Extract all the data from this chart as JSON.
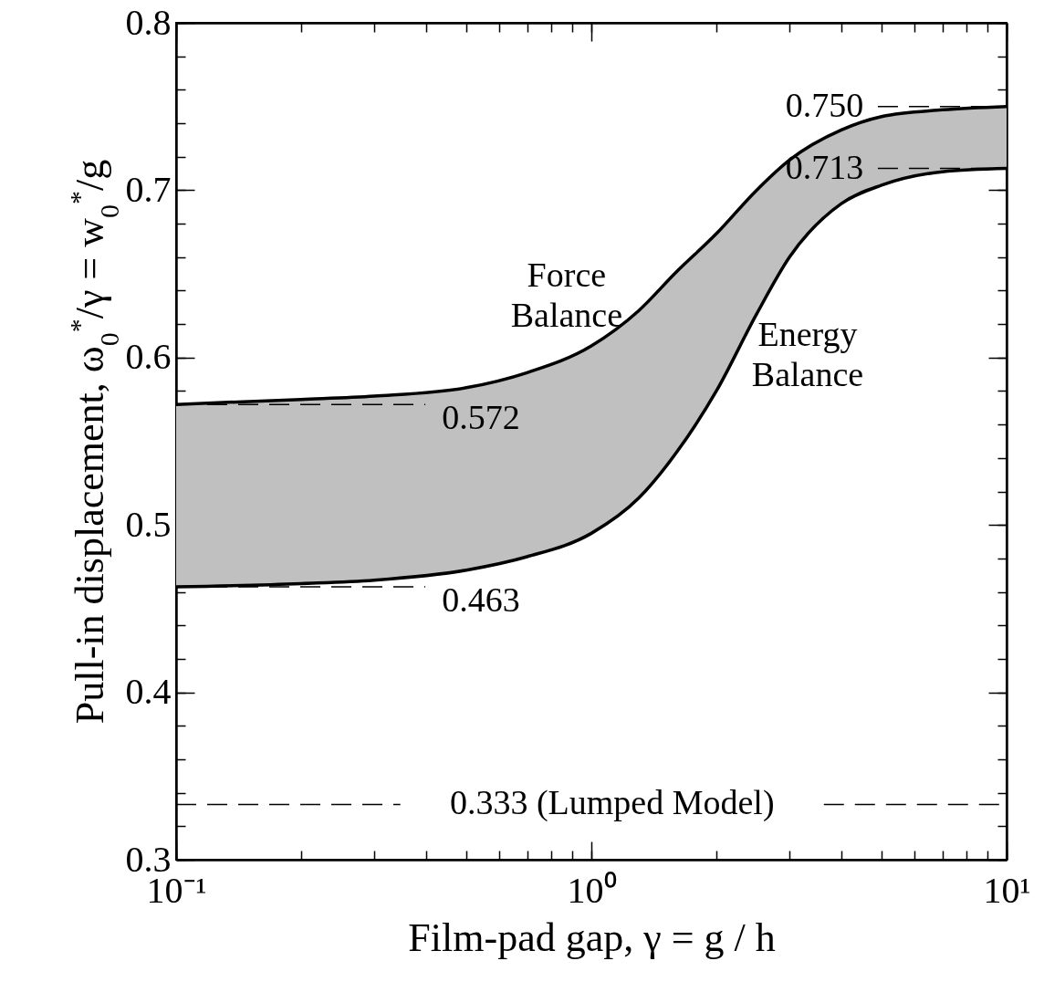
{
  "chart_data": {
    "type": "line",
    "xlabel": "Film-pad gap, γ = g / h",
    "ylabel": "Pull-in displacement, ω$_{0}$$^{*}$/γ = w$_{0}$$^{*}$/g",
    "log": "x",
    "marker": "none",
    "line_style": "solid",
    "x": [
      0.1,
      0.2,
      0.3,
      0.5,
      0.7,
      1,
      1.3,
      1.6,
      2,
      2.5,
      3,
      4,
      5,
      7,
      10
    ],
    "series": [
      {
        "name": "Force Balance",
        "color": "#000000",
        "values": [
          0.572,
          0.575,
          0.577,
          0.582,
          0.591,
          0.607,
          0.628,
          0.651,
          0.674,
          0.7,
          0.718,
          0.736,
          0.744,
          0.748,
          0.75
        ]
      },
      {
        "name": "Energy Balance",
        "color": "#000000",
        "values": [
          0.463,
          0.465,
          0.467,
          0.473,
          0.481,
          0.495,
          0.516,
          0.543,
          0.58,
          0.626,
          0.66,
          0.692,
          0.703,
          0.711,
          0.713
        ],
        "lower": [
          0.463,
          0.465,
          0.467,
          0.473,
          0.481,
          0.495,
          0.516,
          0.543,
          0.58,
          0.626,
          0.66,
          0.692,
          0.703,
          0.711,
          0.713
        ],
        "upper": [
          0.572,
          0.575,
          0.577,
          0.582,
          0.591,
          0.607,
          0.628,
          0.651,
          0.674,
          0.7,
          0.718,
          0.736,
          0.744,
          0.748,
          0.75
        ]
      }
    ],
    "xlim": [
      0.1,
      10
    ],
    "xticks": [
      {
        "value": 0.1,
        "label": "10⁻¹"
      },
      {
        "value": 0.2,
        "label": null
      },
      {
        "value": 0.3,
        "label": null
      },
      {
        "value": 0.4,
        "label": null
      },
      {
        "value": 0.5,
        "label": null
      },
      {
        "value": 0.6,
        "label": null
      },
      {
        "value": 0.7,
        "label": null
      },
      {
        "value": 0.8,
        "label": null
      },
      {
        "value": 0.9,
        "label": null
      },
      {
        "value": 1,
        "label": "10⁰"
      },
      {
        "value": 2,
        "label": null
      },
      {
        "value": 3,
        "label": null
      },
      {
        "value": 4,
        "label": null
      },
      {
        "value": 5,
        "label": null
      },
      {
        "value": 6,
        "label": null
      },
      {
        "value": 7,
        "label": null
      },
      {
        "value": 8,
        "label": null
      },
      {
        "value": 9,
        "label": null
      },
      {
        "value": 10,
        "label": "10¹"
      }
    ],
    "ylim": [
      0.3,
      0.8
    ],
    "yticks": [
      0.3,
      {
        "value": 0.32,
        "label": null
      },
      {
        "value": 0.34,
        "label": null
      },
      {
        "value": 0.36,
        "label": null
      },
      {
        "value": 0.38,
        "label": null
      },
      0.4,
      {
        "value": 0.42,
        "label": null
      },
      {
        "value": 0.44,
        "label": null
      },
      {
        "value": 0.46,
        "label": null
      },
      {
        "value": 0.48,
        "label": null
      },
      0.5,
      {
        "value": 0.52,
        "label": null
      },
      {
        "value": 0.54,
        "label": null
      },
      {
        "value": 0.56,
        "label": null
      },
      {
        "value": 0.58,
        "label": null
      },
      0.6,
      {
        "value": 0.62,
        "label": null
      },
      {
        "value": 0.64,
        "label": null
      },
      {
        "value": 0.66,
        "label": null
      },
      {
        "value": 0.68,
        "label": null
      },
      0.7,
      {
        "value": 0.72,
        "label": null
      },
      {
        "value": 0.74,
        "label": null
      },
      {
        "value": 0.76,
        "label": null
      },
      {
        "value": 0.78,
        "label": null
      },
      0.8
    ],
    "ref_lines": [
      {
        "axis": "y",
        "value": 0.75,
        "label": "0.750",
        "line_style": "dashed"
      },
      {
        "axis": "y",
        "value": 0.713,
        "label": "0.713",
        "line_style": "dashed"
      },
      {
        "axis": "y",
        "value": 0.572,
        "label": "0.572",
        "line_style": "dashed"
      },
      {
        "axis": "y",
        "value": 0.463,
        "label": "0.463",
        "line_style": "dashed"
      },
      {
        "axis": "y",
        "value": 0.333,
        "label": "0.333 (Lumped Model)",
        "line_style": "dashed"
      }
    ]
  }
}
